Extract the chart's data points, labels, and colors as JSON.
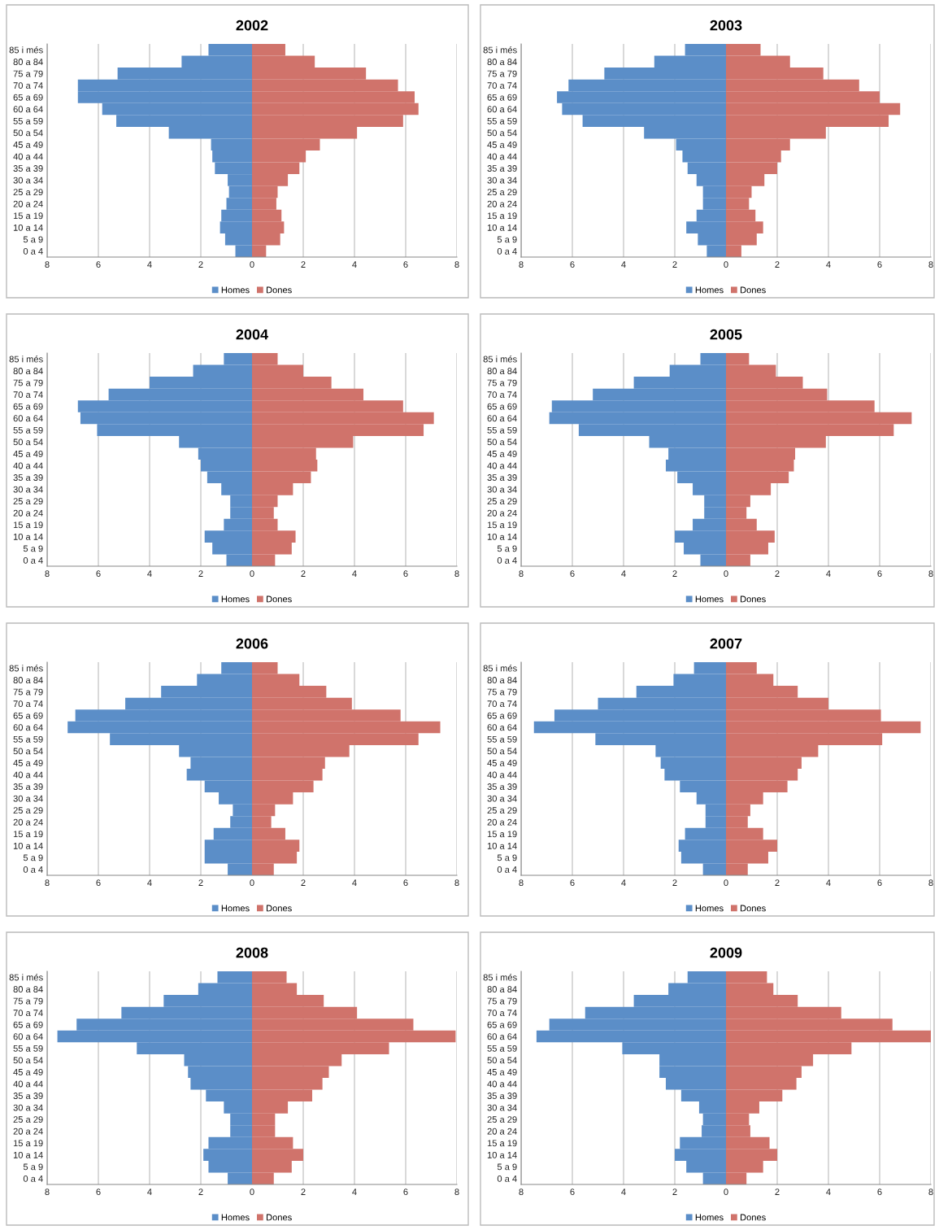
{
  "chart_data": [
    {
      "type": "bar",
      "orientation": "horizontal",
      "title": "2002",
      "categories": [
        "85 i més",
        "80 a 84",
        "75 a 79",
        "70 a 74",
        "65 a 69",
        "60 a 64",
        "55 a 59",
        "50 a 54",
        "45 a 49",
        "40 a 44",
        "35 a 39",
        "30 a 34",
        "25 a 29",
        "20 a 24",
        "15 a 19",
        "10 a 14",
        "5 a 9",
        "0 a 4"
      ],
      "series": [
        {
          "name": "Homes",
          "color": "#5b8ec8",
          "values": [
            -1.7,
            -2.75,
            -5.25,
            -6.8,
            -6.8,
            -5.85,
            -5.3,
            -3.25,
            -1.6,
            -1.55,
            -1.45,
            -0.95,
            -0.9,
            -1.0,
            -1.2,
            -1.25,
            -1.05,
            -0.65
          ]
        },
        {
          "name": "Dones",
          "color": "#d0736b",
          "values": [
            1.3,
            2.45,
            4.45,
            5.7,
            6.35,
            6.5,
            5.9,
            4.1,
            2.65,
            2.1,
            1.85,
            1.4,
            1.0,
            0.95,
            1.15,
            1.25,
            1.1,
            0.55
          ]
        }
      ],
      "xlim": [
        -8,
        8
      ],
      "xticks": [
        {
          "value": -8,
          "label": "8"
        },
        {
          "value": -6,
          "label": "6"
        },
        {
          "value": -4,
          "label": "4"
        },
        {
          "value": -2,
          "label": "2"
        },
        0,
        2,
        4,
        6,
        8
      ],
      "grid": "x",
      "legend": "bottom",
      "stacked": true
    },
    {
      "type": "bar",
      "stacked": true,
      "orientation": "horizontal",
      "title": "2003",
      "categories": [
        "85 i més",
        "80 a 84",
        "75 a 79",
        "70 a 74",
        "65 a 69",
        "60 a 64",
        "55 a 59",
        "50 a 54",
        "45 a 49",
        "40 a 44",
        "35 a 39",
        "30 a 34",
        "25 a 29",
        "20 a 24",
        "15 a 19",
        "10 a 14",
        "5 a 9",
        "0 a 4"
      ],
      "series": [
        {
          "name": "Homes",
          "color": "#5b8ec8",
          "values": [
            -1.6,
            -2.8,
            -4.75,
            -6.15,
            -6.6,
            -6.4,
            -5.6,
            -3.2,
            -1.95,
            -1.7,
            -1.5,
            -1.15,
            -0.9,
            -0.9,
            -1.15,
            -1.55,
            -1.1,
            -0.75
          ]
        },
        {
          "name": "Dones",
          "color": "#d0736b",
          "values": [
            1.35,
            2.5,
            3.8,
            5.2,
            6.0,
            6.8,
            6.35,
            3.9,
            2.5,
            2.15,
            2.0,
            1.5,
            1.0,
            0.9,
            1.15,
            1.45,
            1.2,
            0.6
          ]
        }
      ],
      "xlim": [
        -8,
        8
      ],
      "xticks": [
        {
          "value": -8,
          "label": "8"
        },
        {
          "value": -6,
          "label": "6"
        },
        {
          "value": -4,
          "label": "4"
        },
        {
          "value": -2,
          "label": "2"
        },
        0,
        2,
        4,
        6,
        8
      ],
      "grid": "x",
      "legend": "bottom"
    },
    {
      "type": "bar",
      "stacked": true,
      "orientation": "horizontal",
      "title": "2004",
      "categories": [
        "85 i més",
        "80 a 84",
        "75 a 79",
        "70 a 74",
        "65 a 69",
        "60 a 64",
        "55 a 59",
        "50 a 54",
        "45 a 49",
        "40 a 44",
        "35 a 39",
        "30 a 34",
        "25 a 29",
        "20 a 24",
        "15 a 19",
        "10 a 14",
        "5 a 9",
        "0 a 4"
      ],
      "series": [
        {
          "name": "Homes",
          "color": "#5b8ec8",
          "values": [
            -1.1,
            -2.3,
            -4.0,
            -5.6,
            -6.8,
            -6.7,
            -6.05,
            -2.85,
            -2.1,
            -2.0,
            -1.75,
            -1.2,
            -0.85,
            -0.85,
            -1.1,
            -1.85,
            -1.55,
            -1.0
          ]
        },
        {
          "name": "Dones",
          "color": "#d0736b",
          "values": [
            1.0,
            2.0,
            3.1,
            4.35,
            5.9,
            7.1,
            6.7,
            3.95,
            2.5,
            2.55,
            2.3,
            1.6,
            1.0,
            0.85,
            1.0,
            1.7,
            1.55,
            0.9
          ]
        }
      ],
      "xlim": [
        -8,
        8
      ],
      "xticks": [
        {
          "value": -8,
          "label": "8"
        },
        {
          "value": -6,
          "label": "6"
        },
        {
          "value": -4,
          "label": "4"
        },
        {
          "value": -2,
          "label": "2"
        },
        0,
        2,
        4,
        6,
        8
      ],
      "grid": "x",
      "legend": "bottom"
    },
    {
      "type": "bar",
      "stacked": true,
      "orientation": "horizontal",
      "title": "2005",
      "categories": [
        "85 i més",
        "80 a 84",
        "75 a 79",
        "70 a 74",
        "65 a 69",
        "60 a 64",
        "55 a 59",
        "50 a 54",
        "45 a 49",
        "40 a 44",
        "35 a 39",
        "30 a 34",
        "25 a 29",
        "20 a 24",
        "15 a 19",
        "10 a 14",
        "5 a 9",
        "0 a 4"
      ],
      "series": [
        {
          "name": "Homes",
          "color": "#5b8ec8",
          "values": [
            -1.0,
            -2.2,
            -3.6,
            -5.2,
            -6.8,
            -6.9,
            -5.75,
            -3.0,
            -2.25,
            -2.35,
            -1.9,
            -1.3,
            -0.85,
            -0.85,
            -1.3,
            -2.0,
            -1.65,
            -1.0
          ]
        },
        {
          "name": "Dones",
          "color": "#d0736b",
          "values": [
            0.9,
            1.95,
            3.0,
            3.95,
            5.8,
            7.25,
            6.55,
            3.9,
            2.7,
            2.65,
            2.45,
            1.75,
            0.95,
            0.8,
            1.2,
            1.9,
            1.65,
            0.95
          ]
        }
      ],
      "xlim": [
        -8,
        8
      ],
      "xticks": [
        {
          "value": -8,
          "label": "8"
        },
        {
          "value": -6,
          "label": "6"
        },
        {
          "value": -4,
          "label": "4"
        },
        {
          "value": -2,
          "label": "2"
        },
        0,
        2,
        4,
        6,
        8
      ],
      "grid": "x",
      "legend": "bottom"
    },
    {
      "type": "bar",
      "stacked": true,
      "orientation": "horizontal",
      "title": "2006",
      "categories": [
        "85 i més",
        "80 a 84",
        "75 a 79",
        "70 a 74",
        "65 a 69",
        "60 a 64",
        "55 a 59",
        "50 a 54",
        "45 a 49",
        "40 a 44",
        "35 a 39",
        "30 a 34",
        "25 a 29",
        "20 a 24",
        "15 a 19",
        "10 a 14",
        "5 a 9",
        "0 a 4"
      ],
      "series": [
        {
          "name": "Homes",
          "color": "#5b8ec8",
          "values": [
            -1.2,
            -2.15,
            -3.55,
            -4.95,
            -6.9,
            -7.2,
            -5.55,
            -2.85,
            -2.4,
            -2.55,
            -1.85,
            -1.3,
            -0.75,
            -0.85,
            -1.5,
            -1.85,
            -1.85,
            -0.95
          ]
        },
        {
          "name": "Dones",
          "color": "#d0736b",
          "values": [
            1.0,
            1.85,
            2.9,
            3.9,
            5.8,
            7.35,
            6.5,
            3.8,
            2.85,
            2.75,
            2.4,
            1.6,
            0.9,
            0.75,
            1.3,
            1.85,
            1.75,
            0.85
          ]
        }
      ],
      "xlim": [
        -8,
        8
      ],
      "xticks": [
        {
          "value": -8,
          "label": "8"
        },
        {
          "value": -6,
          "label": "6"
        },
        {
          "value": -4,
          "label": "4"
        },
        {
          "value": -2,
          "label": "2"
        },
        0,
        2,
        4,
        6,
        8
      ],
      "grid": "x",
      "legend": "bottom"
    },
    {
      "type": "bar",
      "stacked": true,
      "orientation": "horizontal",
      "title": "2007",
      "categories": [
        "85 i més",
        "80 a 84",
        "75 a 79",
        "70 a 74",
        "65 a 69",
        "60 a 64",
        "55 a 59",
        "50 a 54",
        "45 a 49",
        "40 a 44",
        "35 a 39",
        "30 a 34",
        "25 a 29",
        "20 a 24",
        "15 a 19",
        "10 a 14",
        "5 a 9",
        "0 a 4"
      ],
      "series": [
        {
          "name": "Homes",
          "color": "#5b8ec8",
          "values": [
            -1.25,
            -2.05,
            -3.5,
            -5.0,
            -6.7,
            -7.5,
            -5.1,
            -2.75,
            -2.55,
            -2.4,
            -1.8,
            -1.15,
            -0.8,
            -0.8,
            -1.6,
            -1.85,
            -1.75,
            -0.9
          ]
        },
        {
          "name": "Dones",
          "color": "#d0736b",
          "values": [
            1.2,
            1.85,
            2.8,
            4.0,
            6.05,
            7.6,
            6.1,
            3.6,
            2.95,
            2.8,
            2.4,
            1.45,
            0.95,
            0.85,
            1.45,
            2.0,
            1.65,
            0.85
          ]
        }
      ],
      "xlim": [
        -8,
        8
      ],
      "xticks": [
        {
          "value": -8,
          "label": "8"
        },
        {
          "value": -6,
          "label": "6"
        },
        {
          "value": -4,
          "label": "4"
        },
        {
          "value": -2,
          "label": "2"
        },
        0,
        2,
        4,
        6,
        8
      ],
      "grid": "x",
      "legend": "bottom"
    },
    {
      "type": "bar",
      "stacked": true,
      "orientation": "horizontal",
      "title": "2008",
      "categories": [
        "85 i més",
        "80 a 84",
        "75 a 79",
        "70 a 74",
        "65 a 69",
        "60 a 64",
        "55 a 59",
        "50 a 54",
        "45 a 49",
        "40 a 44",
        "35 a 39",
        "30 a 34",
        "25 a 29",
        "20 a 24",
        "15 a 19",
        "10 a 14",
        "5 a 9",
        "0 a 4"
      ],
      "series": [
        {
          "name": "Homes",
          "color": "#5b8ec8",
          "values": [
            -1.35,
            -2.1,
            -3.45,
            -5.1,
            -6.85,
            -7.6,
            -4.5,
            -2.65,
            -2.5,
            -2.4,
            -1.8,
            -1.1,
            -0.85,
            -0.85,
            -1.7,
            -1.9,
            -1.7,
            -0.95
          ]
        },
        {
          "name": "Dones",
          "color": "#d0736b",
          "values": [
            1.35,
            1.75,
            2.8,
            4.1,
            6.3,
            7.95,
            5.35,
            3.5,
            3.0,
            2.75,
            2.35,
            1.4,
            0.9,
            0.9,
            1.6,
            2.0,
            1.55,
            0.85
          ]
        }
      ],
      "xlim": [
        -8,
        8
      ],
      "xticks": [
        {
          "value": -8,
          "label": "8"
        },
        {
          "value": -6,
          "label": "6"
        },
        {
          "value": -4,
          "label": "4"
        },
        {
          "value": -2,
          "label": "2"
        },
        0,
        2,
        4,
        6,
        8
      ],
      "grid": "x",
      "legend": "bottom"
    },
    {
      "type": "bar",
      "stacked": true,
      "orientation": "horizontal",
      "title": "2009",
      "categories": [
        "85 i més",
        "80 a 84",
        "75 a 79",
        "70 a 74",
        "65 a 69",
        "60 a 64",
        "55 a 59",
        "50 a 54",
        "45 a 49",
        "40 a 44",
        "35 a 39",
        "30 a 34",
        "25 a 29",
        "20 a 24",
        "15 a 19",
        "10 a 14",
        "5 a 9",
        "0 a 4"
      ],
      "series": [
        {
          "name": "Homes",
          "color": "#5b8ec8",
          "values": [
            -1.5,
            -2.25,
            -3.6,
            -5.5,
            -6.9,
            -7.4,
            -4.05,
            -2.6,
            -2.6,
            -2.35,
            -1.75,
            -1.05,
            -0.9,
            -0.95,
            -1.8,
            -2.0,
            -1.55,
            -0.9
          ]
        },
        {
          "name": "Dones",
          "color": "#d0736b",
          "values": [
            1.6,
            1.85,
            2.8,
            4.5,
            6.5,
            8.0,
            4.9,
            3.4,
            2.95,
            2.75,
            2.2,
            1.3,
            0.9,
            0.95,
            1.7,
            2.0,
            1.45,
            0.8
          ]
        }
      ],
      "xlim": [
        -8,
        8
      ],
      "xticks": [
        {
          "value": -8,
          "label": "8"
        },
        {
          "value": -6,
          "label": "6"
        },
        {
          "value": -4,
          "label": "4"
        },
        {
          "value": -2,
          "label": "2"
        },
        0,
        2,
        4,
        6,
        8
      ],
      "grid": "x",
      "legend": "bottom"
    }
  ]
}
